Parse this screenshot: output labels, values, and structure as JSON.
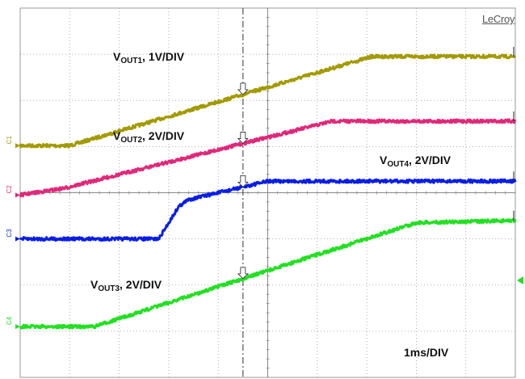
{
  "brand": "LeCroy",
  "timebase_label": "1ms/DIV",
  "annotations": [
    {
      "id": "vout1",
      "main": "V",
      "sub": "OUT1",
      "rest": ", 1V/DIV"
    },
    {
      "id": "vout2",
      "main": "V",
      "sub": "OUT2",
      "rest": ", 2V/DIV"
    },
    {
      "id": "vout4",
      "main": "V",
      "sub": "OUT4",
      "rest": ", 2V/DIV"
    },
    {
      "id": "vout3",
      "main": "V",
      "sub": "OUT3",
      "rest": ", 2V/DIV"
    }
  ],
  "chart_data": {
    "type": "line",
    "title": "",
    "xlabel": "",
    "ylabel": "",
    "x_unit": "ms",
    "xlim": [
      0,
      10
    ],
    "ylim": [
      -4,
      4
    ],
    "grid": true,
    "series": [
      {
        "channel": "C1",
        "color": "#a39a00",
        "x": [
          0,
          1.0,
          7.1,
          10
        ],
        "y": [
          1.02,
          1.02,
          2.95,
          2.95
        ]
      },
      {
        "channel": "C2",
        "color": "#e0287a",
        "x": [
          0,
          0.9,
          6.3,
          10
        ],
        "y": [
          -0.05,
          0.1,
          1.55,
          1.55
        ]
      },
      {
        "channel": "C3",
        "color": "#0a1ee6",
        "x": [
          0,
          2.8,
          3.2,
          3.4,
          5.0,
          10
        ],
        "y": [
          -1.0,
          -1.0,
          -0.3,
          -0.15,
          0.25,
          0.25
        ]
      },
      {
        "channel": "C4",
        "color": "#22e022",
        "x": [
          0,
          1.5,
          8.0,
          10
        ],
        "y": [
          -2.9,
          -2.9,
          -0.65,
          -0.6
        ]
      }
    ],
    "channel_labels": [
      "C1",
      "C2",
      "C3",
      "C4"
    ],
    "cursor_time_ms": 4.5
  }
}
